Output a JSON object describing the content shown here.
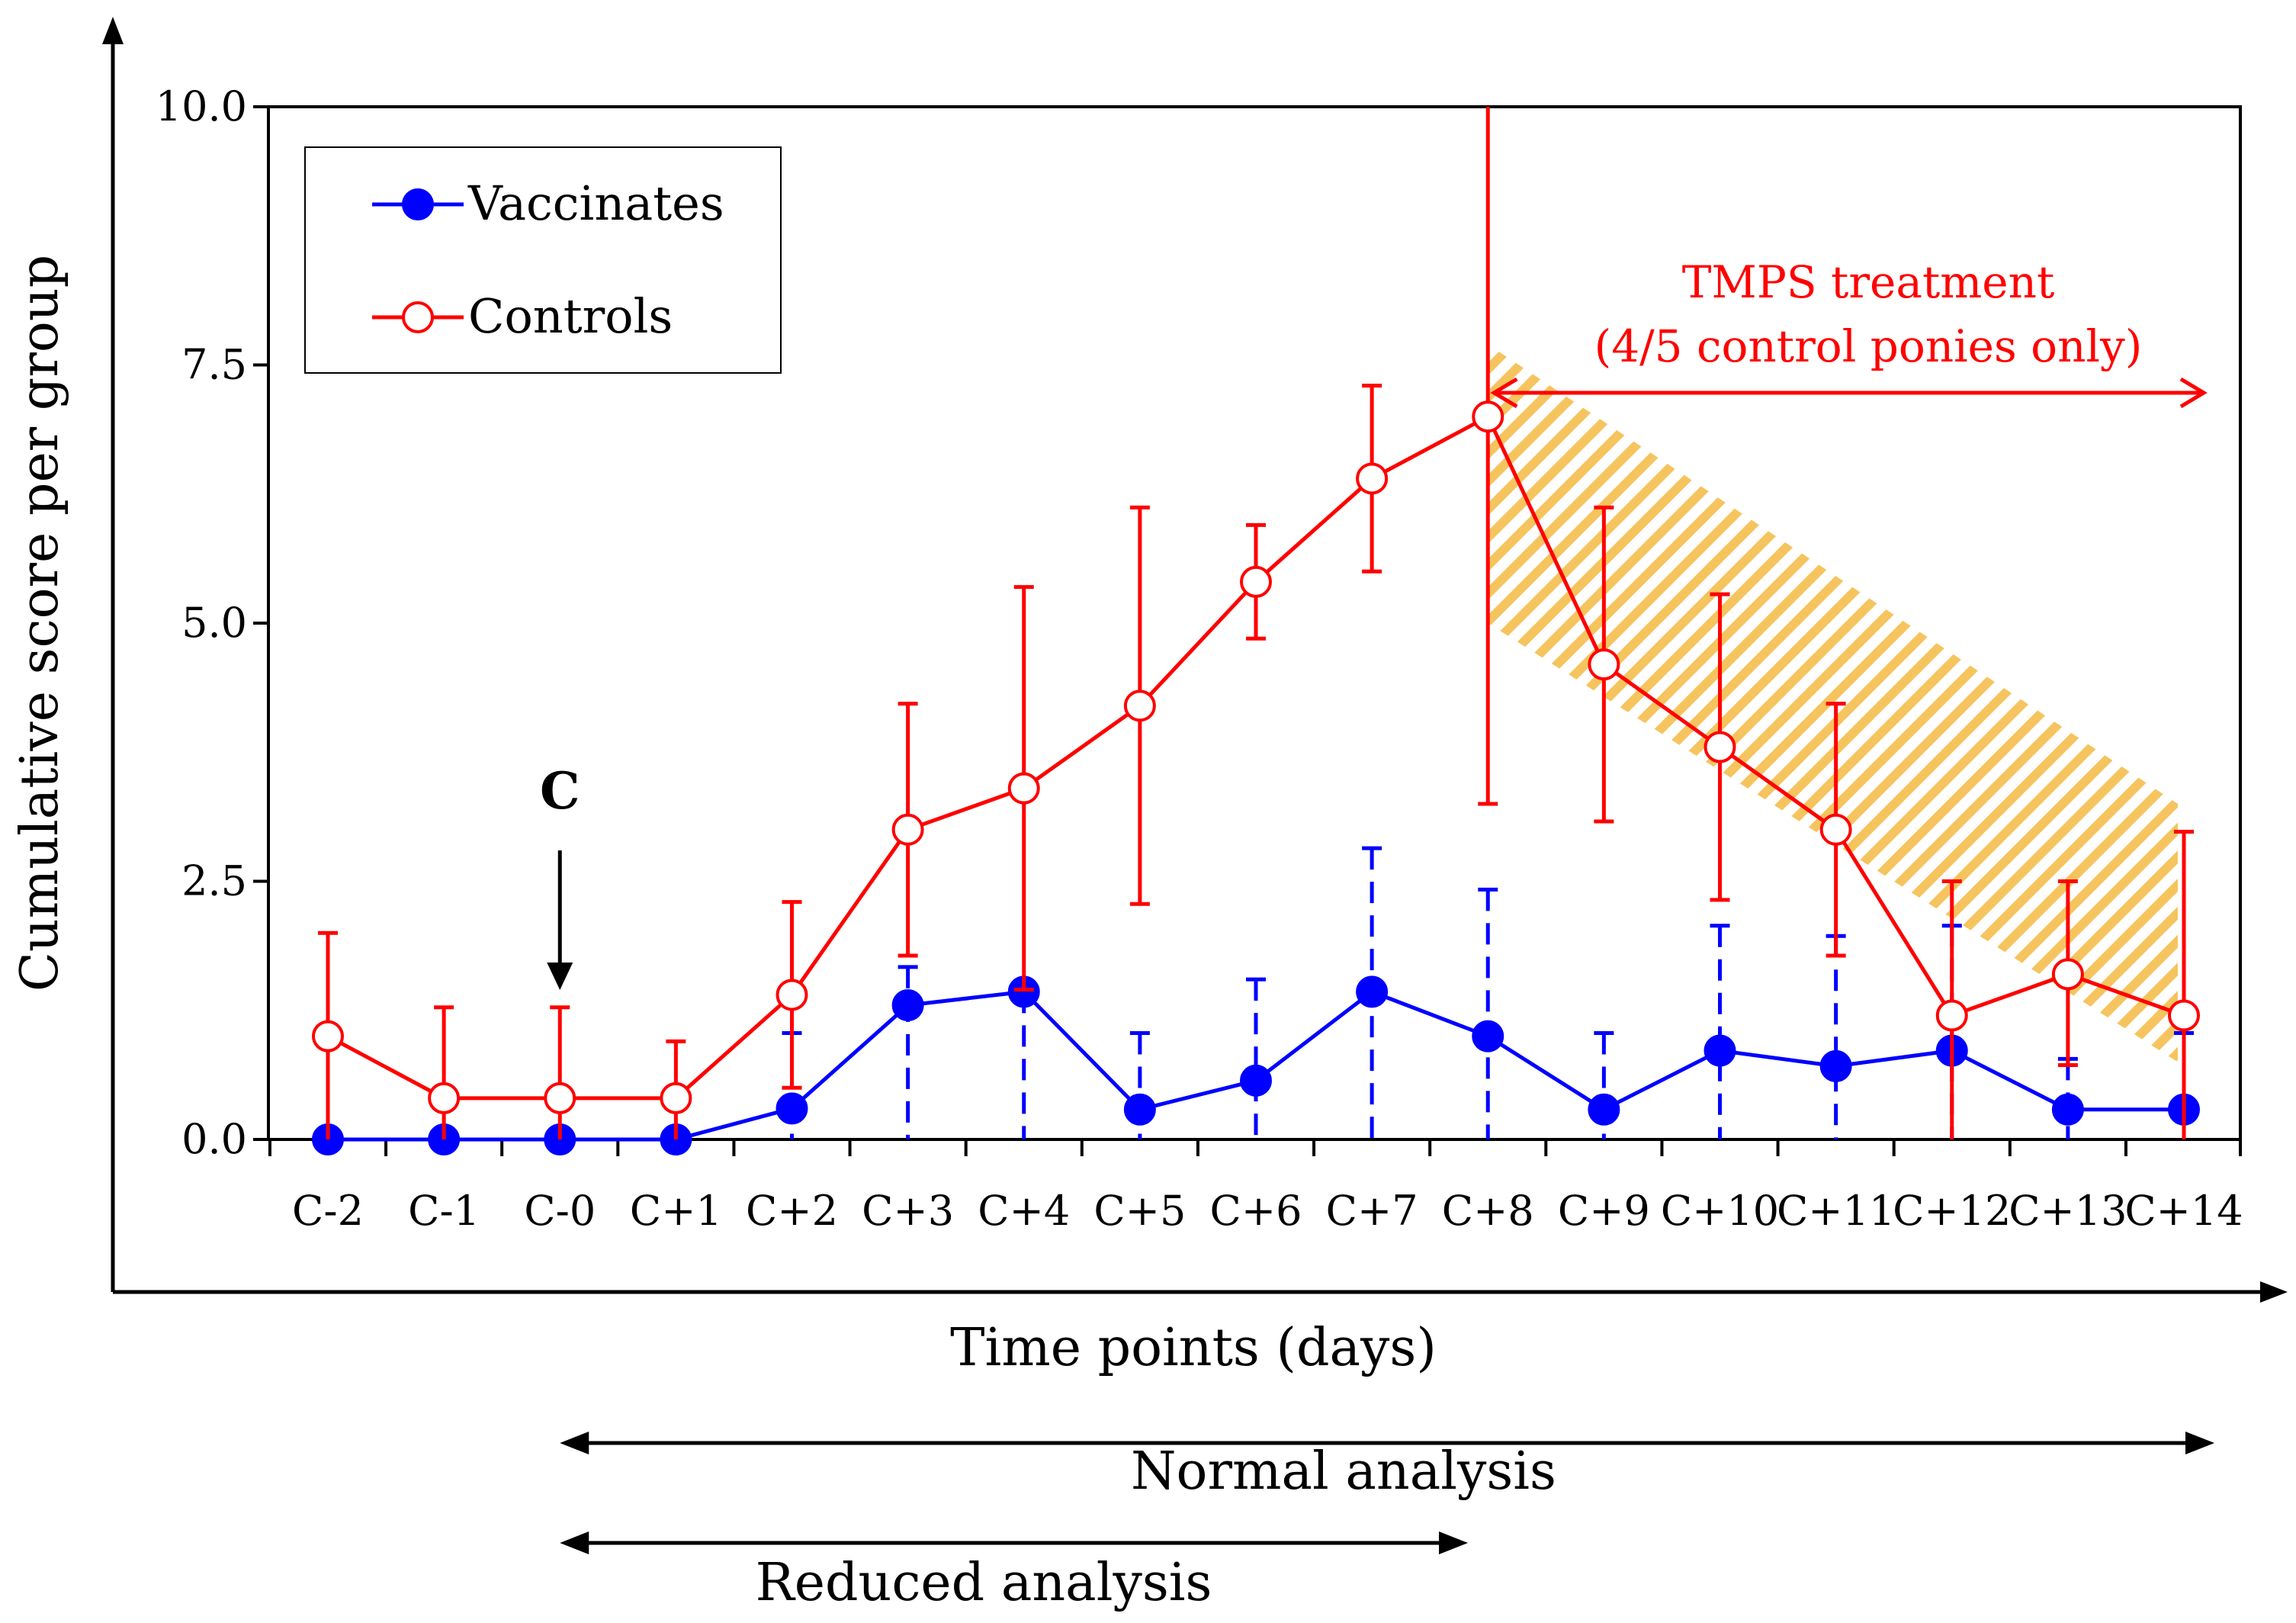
{
  "chart_data": {
    "type": "line",
    "title": "",
    "xlabel": "Time points (days)",
    "ylabel": "Cumulative score per group",
    "ylim": [
      0,
      10
    ],
    "yticks": [
      "0.0",
      "2.5",
      "5.0",
      "7.5",
      "10.0"
    ],
    "categories": [
      "C-2",
      "C-1",
      "C-0",
      "C+1",
      "C+2",
      "C+3",
      "C+4",
      "C+5",
      "C+6",
      "C+7",
      "C+8",
      "C+9",
      "C+10",
      "C+11",
      "C+12",
      "C+13",
      "C+14"
    ],
    "grid": false,
    "legend_position": "top-left",
    "series": [
      {
        "name": "Vaccinates",
        "color": "#0000ff",
        "marker": "filled-circle",
        "error_style": "dashed",
        "values": [
          0,
          0,
          0,
          0,
          0.3,
          1.3,
          1.43,
          0.29,
          0.57,
          1.43,
          1.0,
          0.29,
          0.86,
          0.71,
          0.86,
          0.29,
          0.29
        ],
        "error_upper": [
          0,
          0,
          0,
          0,
          1.03,
          1.67,
          1.43,
          1.03,
          1.55,
          2.82,
          2.42,
          1.03,
          2.07,
          1.97,
          2.07,
          0.78,
          1.03
        ]
      },
      {
        "name": "Controls",
        "color": "#ff0000",
        "marker": "open-circle",
        "error_style": "solid",
        "values": [
          1.0,
          0.4,
          0.4,
          0.4,
          1.4,
          3.0,
          3.4,
          4.2,
          5.4,
          6.4,
          7.0,
          4.6,
          3.8,
          3.0,
          1.2,
          1.6,
          1.2
        ],
        "error_upper": [
          2.0,
          1.28,
          1.28,
          0.95,
          2.3,
          4.22,
          5.35,
          6.12,
          5.95,
          7.3,
          10.0,
          6.12,
          5.28,
          4.22,
          2.5,
          2.5,
          2.98
        ],
        "error_lower": [
          0,
          0,
          0,
          0,
          0.5,
          1.78,
          1.45,
          2.28,
          4.85,
          5.5,
          3.25,
          3.08,
          2.32,
          1.78,
          0,
          0.72,
          0
        ]
      }
    ],
    "annotations": {
      "challenge_label": "C",
      "challenge_index": 2,
      "treatment_line1": "TMPS treatment",
      "treatment_line2": "(4/5 control ponies only)",
      "treatment_start_index": 10,
      "treatment_end_index": 16,
      "normal_analysis": "Normal analysis",
      "reduced_analysis": "Reduced analysis",
      "hatch_color": "#f4b942"
    }
  }
}
